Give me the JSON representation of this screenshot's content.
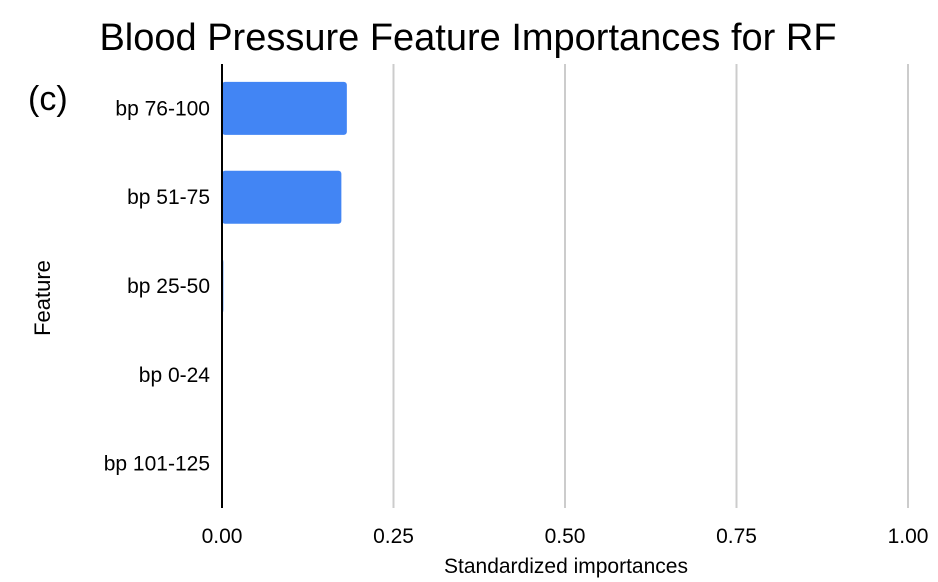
{
  "panel_label": "(c)",
  "chart_data": {
    "type": "bar",
    "orientation": "horizontal",
    "title": "Blood Pressure Feature Importances for RF",
    "xlabel": "Standardized importances",
    "ylabel": "Feature",
    "categories": [
      "bp 76-100",
      "bp 51-75",
      "bp 25-50",
      "bp 0-24",
      "bp 101-125"
    ],
    "values": [
      0.182,
      0.174,
      0.002,
      0.0,
      0.0
    ],
    "xlim": [
      0,
      1
    ],
    "xticks": [
      "0.00",
      "0.25",
      "0.50",
      "0.75",
      "1.00"
    ],
    "xtick_values": [
      0,
      0.25,
      0.5,
      0.75,
      1.0
    ],
    "grid": "vertical",
    "bar_color": "#4285f4",
    "grid_color": "#cccccc",
    "axis_color": "#000000"
  }
}
